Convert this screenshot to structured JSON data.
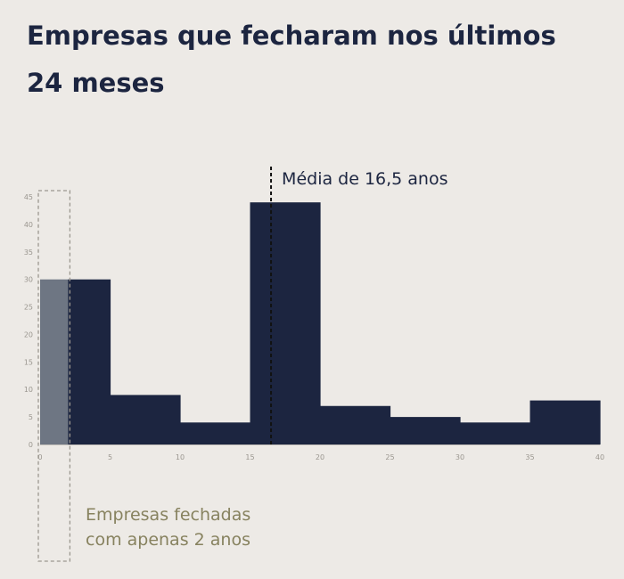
{
  "title": "Empresas que fecharam nos últimos 24 meses",
  "chart_data": {
    "type": "bar",
    "subtype": "histogram",
    "bins": [
      {
        "start": 0,
        "end": 2,
        "value": 30,
        "highlight": true
      },
      {
        "start": 2,
        "end": 5,
        "value": 30
      },
      {
        "start": 5,
        "end": 10,
        "value": 9
      },
      {
        "start": 10,
        "end": 15,
        "value": 4
      },
      {
        "start": 15,
        "end": 20,
        "value": 44
      },
      {
        "start": 20,
        "end": 25,
        "value": 7
      },
      {
        "start": 25,
        "end": 30,
        "value": 5
      },
      {
        "start": 30,
        "end": 35,
        "value": 4
      },
      {
        "start": 35,
        "end": 40,
        "value": 8
      }
    ],
    "xlim": [
      0,
      40
    ],
    "ylim": [
      0,
      45
    ],
    "xticks": [
      "0",
      "5",
      "10",
      "15",
      "20",
      "25",
      "30",
      "35",
      "40"
    ],
    "yticks": [
      "0",
      "5",
      "10",
      "15",
      "20",
      "25",
      "30",
      "35",
      "40",
      "45"
    ],
    "mean": {
      "x": 16.5,
      "label": "Média de 16,5 anos"
    },
    "highlight_label": "Empresas fechadas com apenas 2 anos",
    "colors": {
      "bar": "#1c2540",
      "highlight": "#6e7683",
      "annotation": "#87825f",
      "background": "#edeae6"
    },
    "grid": false,
    "legend": "none"
  }
}
